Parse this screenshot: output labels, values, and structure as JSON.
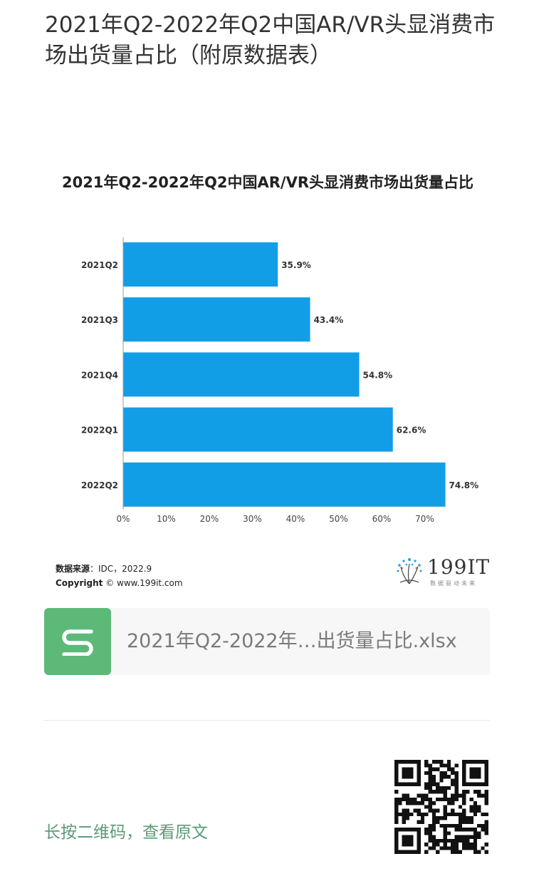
{
  "article": {
    "title": "2021年Q2-2022年Q2中国AR/VR头显消费市场出货量占比（附原数据表）"
  },
  "chart_data": {
    "type": "bar",
    "orientation": "horizontal",
    "title": "2021年Q2-2022年Q2中国AR/VR头显消费市场出货量占比",
    "categories": [
      "2021Q2",
      "2021Q3",
      "2021Q4",
      "2022Q1",
      "2022Q2"
    ],
    "values": [
      35.9,
      43.4,
      54.8,
      62.6,
      74.8
    ],
    "data_labels": [
      "35.9%",
      "43.4%",
      "54.8%",
      "62.6%",
      "74.8%"
    ],
    "xlim": [
      0,
      75
    ],
    "x_ticks": [
      0,
      10,
      20,
      30,
      40,
      50,
      60,
      70
    ],
    "x_tick_labels": [
      "0%",
      "10%",
      "20%",
      "30%",
      "40%",
      "50%",
      "60%",
      "70%"
    ],
    "bar_color": "#129ee6",
    "grid": false,
    "xlabel": "",
    "ylabel": ""
  },
  "source": {
    "label": "数据来源",
    "value": "：IDC，2022.9",
    "copyright_label": "Copyright",
    "copyright_value": "© www.199it.com"
  },
  "brand": {
    "name": "199IT",
    "tagline": "数据驱动未来"
  },
  "attachment": {
    "filename": "2021年Q2-2022年…出货量占比.xlsx",
    "icon": "spreadsheet-s-icon",
    "icon_color": "#5cb978"
  },
  "footer": {
    "qr_hint": "长按二维码，查看原文"
  }
}
